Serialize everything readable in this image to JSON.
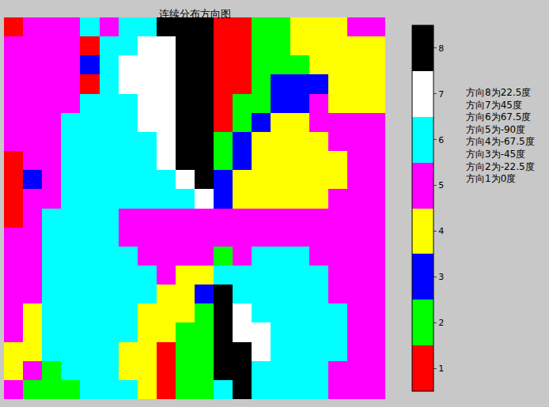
{
  "chart_data": {
    "type": "heatmap",
    "title": "连续分布方向图",
    "colors": [
      "#ff0000",
      "#00ff00",
      "#0000ff",
      "#ffff00",
      "#ff00ff",
      "#00ffff",
      "#ffffff",
      "#000000"
    ],
    "colorbar": {
      "range": [
        0.5,
        8.5
      ],
      "ticks": [
        1,
        2,
        3,
        4,
        5,
        6,
        7,
        8
      ]
    },
    "tick_labels": false,
    "annotations": [
      "方向8为22.5度",
      "方向7为45度",
      "方向6为67.5度",
      "方向5为-90度",
      "方向4为-67.5度",
      "方向3为-45度",
      "方向2为-22.5度",
      "方向1为0度"
    ],
    "cells": [
      [
        1,
        5,
        5,
        5,
        6,
        5,
        6,
        6,
        8,
        8,
        8,
        1,
        1,
        2,
        2,
        4,
        4,
        4,
        5,
        5
      ],
      [
        5,
        5,
        5,
        5,
        1,
        6,
        6,
        7,
        7,
        8,
        8,
        1,
        1,
        2,
        2,
        4,
        4,
        4,
        4,
        4
      ],
      [
        5,
        5,
        5,
        5,
        3,
        6,
        7,
        7,
        7,
        8,
        8,
        1,
        1,
        2,
        2,
        2,
        4,
        4,
        4,
        4
      ],
      [
        5,
        5,
        5,
        5,
        1,
        6,
        7,
        7,
        7,
        8,
        8,
        1,
        1,
        2,
        3,
        3,
        3,
        4,
        4,
        4
      ],
      [
        5,
        5,
        5,
        5,
        6,
        6,
        6,
        7,
        7,
        8,
        8,
        1,
        2,
        2,
        3,
        3,
        5,
        4,
        4,
        4
      ],
      [
        5,
        5,
        5,
        6,
        6,
        6,
        6,
        7,
        7,
        8,
        8,
        1,
        2,
        3,
        4,
        4,
        5,
        5,
        5,
        5
      ],
      [
        5,
        5,
        5,
        6,
        6,
        6,
        6,
        6,
        7,
        8,
        8,
        2,
        3,
        4,
        4,
        4,
        4,
        5,
        5,
        5
      ],
      [
        1,
        5,
        5,
        6,
        6,
        6,
        6,
        6,
        7,
        8,
        8,
        2,
        3,
        4,
        4,
        4,
        4,
        4,
        5,
        5
      ],
      [
        1,
        3,
        5,
        6,
        6,
        6,
        6,
        6,
        6,
        7,
        8,
        3,
        4,
        4,
        4,
        4,
        4,
        4,
        5,
        5
      ],
      [
        1,
        5,
        5,
        6,
        6,
        6,
        6,
        6,
        6,
        6,
        7,
        3,
        4,
        4,
        4,
        4,
        4,
        5,
        5,
        5
      ],
      [
        1,
        5,
        6,
        6,
        6,
        6,
        5,
        5,
        5,
        5,
        5,
        5,
        5,
        5,
        5,
        5,
        5,
        5,
        5,
        5
      ],
      [
        5,
        5,
        6,
        6,
        6,
        6,
        5,
        5,
        5,
        5,
        5,
        5,
        5,
        5,
        5,
        5,
        5,
        5,
        5,
        5
      ],
      [
        5,
        5,
        6,
        6,
        6,
        6,
        6,
        5,
        5,
        5,
        5,
        2,
        5,
        6,
        6,
        6,
        5,
        5,
        5,
        5
      ],
      [
        5,
        5,
        6,
        6,
        6,
        6,
        6,
        6,
        5,
        4,
        4,
        6,
        6,
        6,
        6,
        6,
        6,
        5,
        5,
        5
      ],
      [
        5,
        5,
        6,
        6,
        6,
        6,
        6,
        6,
        4,
        4,
        3,
        8,
        6,
        6,
        6,
        6,
        6,
        5,
        5,
        5
      ],
      [
        5,
        4,
        6,
        6,
        6,
        6,
        6,
        4,
        4,
        4,
        2,
        8,
        7,
        6,
        6,
        6,
        6,
        6,
        5,
        5
      ],
      [
        5,
        4,
        6,
        6,
        6,
        6,
        6,
        4,
        4,
        2,
        2,
        8,
        7,
        7,
        6,
        6,
        6,
        6,
        5,
        5
      ],
      [
        4,
        4,
        6,
        6,
        6,
        6,
        4,
        4,
        1,
        2,
        2,
        8,
        8,
        7,
        6,
        6,
        6,
        6,
        5,
        5
      ],
      [
        4,
        5,
        2,
        6,
        6,
        6,
        4,
        4,
        1,
        2,
        2,
        8,
        8,
        6,
        6,
        6,
        6,
        5,
        5,
        5
      ],
      [
        5,
        2,
        2,
        2,
        6,
        6,
        6,
        4,
        1,
        2,
        2,
        6,
        8,
        6,
        6,
        6,
        6,
        5,
        5,
        5
      ]
    ]
  }
}
